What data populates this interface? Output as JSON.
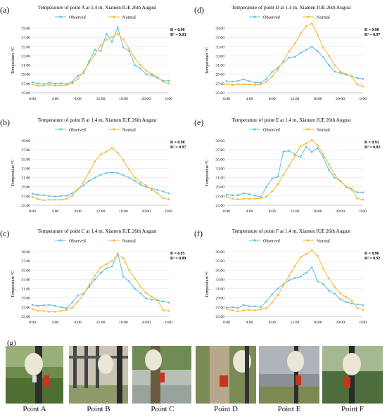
{
  "x_ticks": [
    "0:00",
    "4:00",
    "8:00",
    "12:00",
    "16:00",
    "20:00",
    "0:00"
  ],
  "y_ticks": [
    "25.00",
    "27.00",
    "29.00",
    "31.00",
    "33.00",
    "35.00",
    "37.00",
    "39.00"
  ],
  "ylabel": "Temperature °C",
  "legend": {
    "observed": "Observed",
    "normal": "Normal"
  },
  "colors": {
    "observed": "#5bc0eb",
    "normal": "#f5b731"
  },
  "panels": [
    {
      "letter": "(a)",
      "title": "Temperature of point A at 1.4 m, Xiamen IUE 26th August",
      "r": "R = 0.96",
      "r2": "R² = 0.93"
    },
    {
      "letter": "(b)",
      "title": "Temperature of point B at 1.4 m, Xiamen IUE 26th August",
      "r": "R = 0.98",
      "r2": "R² = 0.97"
    },
    {
      "letter": "(c)",
      "title": "Temperature of point C at 1.4 m, Xiamen IUE 26th August",
      "r": "R = 0.95",
      "r2": "R² = 0.89"
    },
    {
      "letter": "(d)",
      "title": "Temperature of point D at 1.4 m, Xiamen IUE 26th August",
      "r": "R = 0.98",
      "r2": "R² = 0.97"
    },
    {
      "letter": "(e)",
      "title": "Temperature of point E at 1.4 m, Xiamen IUE 26th August",
      "r": "R = 0.91",
      "r2": "R² = 0.82"
    },
    {
      "letter": "(f)",
      "title": "Temperature of point F at 1.4 m, Xiamen IUE 26th August",
      "r": "R = 0.96",
      "r2": "R² = 0.92"
    }
  ],
  "photos": {
    "letter": "(g)",
    "labels": [
      "Point A",
      "Point B",
      "Point C",
      "Point D",
      "Point E",
      "Point F"
    ]
  },
  "chart_data": [
    {
      "type": "line",
      "x": [
        "0:00",
        "1:00",
        "2:00",
        "3:00",
        "4:00",
        "5:00",
        "6:00",
        "7:00",
        "8:00",
        "9:00",
        "10:00",
        "11:00",
        "12:00",
        "13:00",
        "14:00",
        "15:00",
        "16:00",
        "17:00",
        "18:00",
        "19:00",
        "20:00",
        "21:00",
        "22:00",
        "23:00",
        "0:00"
      ],
      "ylim": [
        25,
        39
      ],
      "series": [
        {
          "name": "Observed",
          "values": [
            27.3,
            27.0,
            26.9,
            27.2,
            27.0,
            27.1,
            26.9,
            27.4,
            28.7,
            29.3,
            31.9,
            34.3,
            34.0,
            37.7,
            36.0,
            39.2,
            34.8,
            34.1,
            31.0,
            30.3,
            29.0,
            28.8,
            28.2,
            27.6,
            27.6
          ]
        },
        {
          "name": "Normal",
          "values": [
            26.8,
            26.5,
            26.6,
            26.7,
            26.6,
            26.6,
            26.7,
            27.0,
            28.0,
            29.6,
            31.5,
            33.3,
            35.3,
            36.5,
            37.1,
            37.8,
            36.6,
            34.6,
            32.5,
            31.0,
            29.8,
            29.1,
            28.4,
            27.4,
            27.0
          ]
        }
      ]
    },
    {
      "type": "line",
      "x": [
        "0:00",
        "1:00",
        "2:00",
        "3:00",
        "4:00",
        "5:00",
        "6:00",
        "7:00",
        "8:00",
        "9:00",
        "10:00",
        "11:00",
        "12:00",
        "13:00",
        "14:00",
        "15:00",
        "16:00",
        "17:00",
        "18:00",
        "19:00",
        "20:00",
        "21:00",
        "22:00",
        "23:00",
        "0:00"
      ],
      "ylim": [
        25,
        39
      ],
      "series": [
        {
          "name": "Observed",
          "values": [
            27.5,
            27.3,
            27.2,
            27.0,
            26.9,
            27.0,
            27.1,
            27.6,
            28.5,
            29.3,
            30.3,
            31.0,
            31.6,
            32.0,
            32.1,
            32.0,
            31.5,
            31.0,
            30.3,
            29.5,
            29.0,
            28.6,
            28.3,
            28.0,
            27.6
          ]
        },
        {
          "name": "Normal",
          "values": [
            26.8,
            26.3,
            26.1,
            26.2,
            26.2,
            26.2,
            26.4,
            27.1,
            28.4,
            30.0,
            32.2,
            34.5,
            36.0,
            36.6,
            37.4,
            36.4,
            34.8,
            32.8,
            31.0,
            30.0,
            29.3,
            28.3,
            27.6,
            26.5,
            26.3
          ]
        }
      ]
    },
    {
      "type": "line",
      "x": [
        "0:00",
        "1:00",
        "2:00",
        "3:00",
        "4:00",
        "5:00",
        "6:00",
        "7:00",
        "8:00",
        "9:00",
        "10:00",
        "11:00",
        "12:00",
        "13:00",
        "14:00",
        "15:00",
        "16:00",
        "17:00",
        "18:00",
        "19:00",
        "20:00",
        "21:00",
        "22:00",
        "23:00",
        "0:00"
      ],
      "ylim": [
        25,
        39
      ],
      "series": [
        {
          "name": "Observed",
          "values": [
            27.5,
            27.3,
            27.4,
            27.5,
            27.3,
            27.0,
            26.8,
            28.0,
            29.5,
            30.0,
            31.4,
            33.0,
            34.4,
            35.4,
            35.8,
            38.6,
            33.6,
            32.6,
            31.0,
            30.0,
            28.9,
            28.6,
            28.5,
            28.2,
            28.0
          ]
        },
        {
          "name": "Normal",
          "values": [
            26.6,
            26.2,
            26.2,
            26.0,
            26.0,
            26.2,
            26.4,
            26.9,
            28.2,
            29.8,
            31.8,
            33.8,
            35.6,
            36.3,
            37.0,
            38.3,
            37.6,
            35.0,
            33.2,
            31.5,
            30.0,
            29.2,
            28.6,
            26.3,
            26.2
          ]
        }
      ]
    },
    {
      "type": "line",
      "x": [
        "0:00",
        "1:00",
        "2:00",
        "3:00",
        "4:00",
        "5:00",
        "6:00",
        "7:00",
        "8:00",
        "9:00",
        "10:00",
        "11:00",
        "12:00",
        "13:00",
        "14:00",
        "15:00",
        "16:00",
        "17:00",
        "18:00",
        "19:00",
        "20:00",
        "21:00",
        "22:00",
        "23:00",
        "0:00"
      ],
      "ylim": [
        25,
        39
      ],
      "series": [
        {
          "name": "Observed",
          "values": [
            27.5,
            27.4,
            27.6,
            27.9,
            27.5,
            27.2,
            27.2,
            28.0,
            29.5,
            30.4,
            31.6,
            32.6,
            32.8,
            33.6,
            34.3,
            35.0,
            34.0,
            32.7,
            31.0,
            29.6,
            29.3,
            28.9,
            28.6,
            28.2,
            28.0
          ]
        },
        {
          "name": "Normal",
          "values": [
            26.9,
            26.7,
            26.8,
            26.8,
            26.8,
            26.7,
            26.8,
            27.4,
            28.5,
            30.0,
            31.9,
            34.0,
            35.6,
            37.8,
            39.4,
            40.0,
            37.6,
            34.8,
            33.0,
            31.0,
            29.6,
            29.1,
            28.5,
            26.8,
            26.4
          ]
        }
      ]
    },
    {
      "type": "line",
      "x": [
        "0:00",
        "1:00",
        "2:00",
        "3:00",
        "4:00",
        "5:00",
        "6:00",
        "7:00",
        "8:00",
        "9:00",
        "10:00",
        "11:00",
        "12:00",
        "13:00",
        "14:00",
        "15:00",
        "16:00",
        "17:00",
        "18:00",
        "19:00",
        "20:00",
        "21:00",
        "22:00",
        "23:00",
        "0:00"
      ],
      "ylim": [
        25,
        39
      ],
      "series": [
        {
          "name": "Observed",
          "values": [
            27.3,
            27.2,
            27.2,
            27.6,
            27.4,
            27.1,
            26.8,
            29.0,
            30.8,
            31.2,
            36.6,
            36.8,
            36.0,
            35.4,
            37.7,
            36.5,
            37.4,
            35.4,
            32.6,
            31.0,
            30.3,
            29.0,
            28.4,
            27.8,
            27.8
          ]
        },
        {
          "name": "Normal",
          "values": [
            26.9,
            26.4,
            26.3,
            26.4,
            26.4,
            26.4,
            26.5,
            26.9,
            28.0,
            29.6,
            31.6,
            33.6,
            35.7,
            37.8,
            38.4,
            39.1,
            38.0,
            36.0,
            33.8,
            31.7,
            30.2,
            29.1,
            28.6,
            26.5,
            26.2
          ]
        }
      ]
    },
    {
      "type": "line",
      "x": [
        "0:00",
        "1:00",
        "2:00",
        "3:00",
        "4:00",
        "5:00",
        "6:00",
        "7:00",
        "8:00",
        "9:00",
        "10:00",
        "11:00",
        "12:00",
        "13:00",
        "14:00",
        "15:00",
        "16:00",
        "17:00",
        "18:00",
        "19:00",
        "20:00",
        "21:00",
        "22:00",
        "23:00",
        "0:00"
      ],
      "ylim": [
        25,
        39
      ],
      "series": [
        {
          "name": "Observed",
          "values": [
            26.9,
            27.0,
            26.8,
            27.5,
            27.2,
            27.2,
            27.0,
            28.2,
            29.8,
            31.0,
            32.0,
            32.8,
            33.3,
            33.6,
            34.4,
            35.6,
            32.6,
            32.0,
            30.6,
            29.9,
            28.7,
            28.1,
            27.8,
            27.6,
            27.4
          ]
        },
        {
          "name": "Normal",
          "values": [
            26.6,
            26.3,
            26.1,
            26.3,
            26.4,
            26.3,
            26.5,
            26.8,
            28.0,
            29.6,
            31.7,
            33.8,
            35.8,
            37.8,
            38.5,
            39.3,
            38.1,
            35.3,
            33.2,
            31.4,
            30.0,
            29.2,
            28.4,
            26.8,
            26.4
          ]
        }
      ]
    }
  ]
}
